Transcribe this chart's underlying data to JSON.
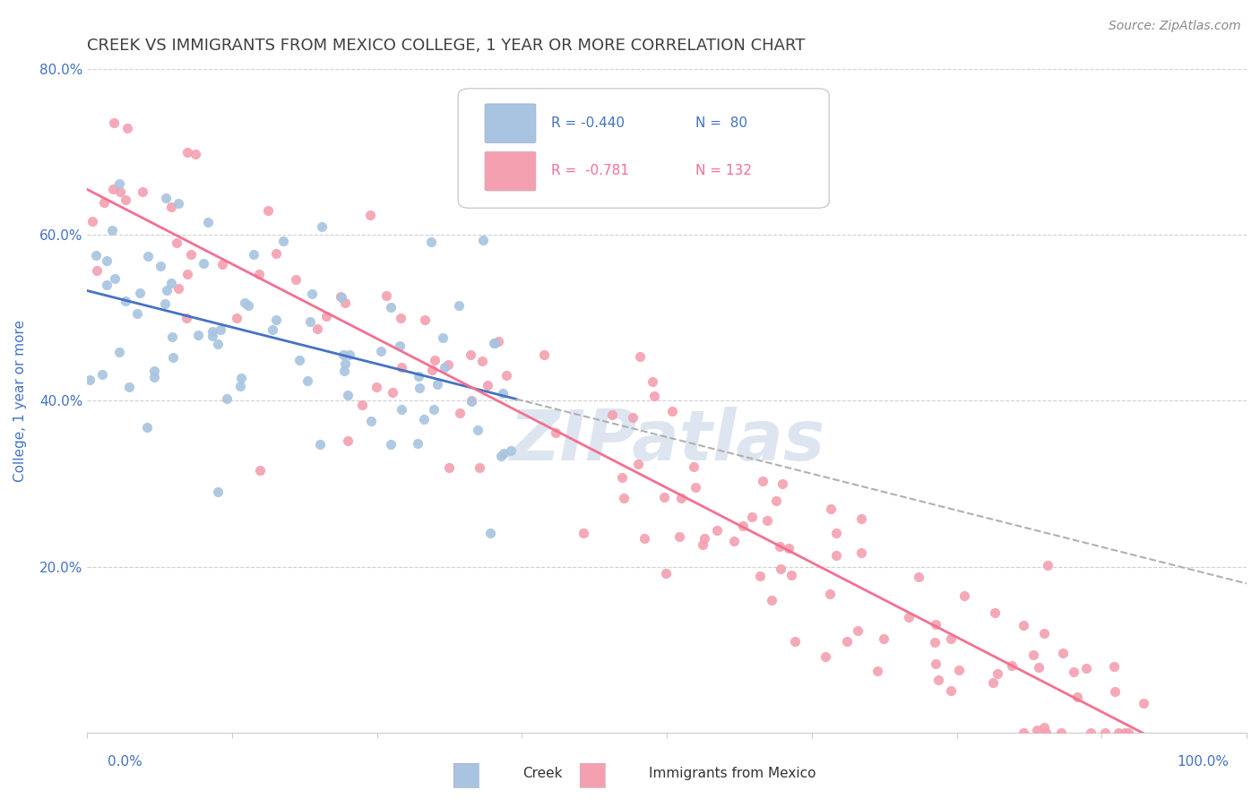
{
  "title": "CREEK VS IMMIGRANTS FROM MEXICO COLLEGE, 1 YEAR OR MORE CORRELATION CHART",
  "source_text": "Source: ZipAtlas.com",
  "ylabel": "College, 1 year or more",
  "watermark": "ZIPatlas",
  "creek_color": "#a8c4e0",
  "mexico_color": "#f4a0b0",
  "creek_line_color": "#4472c4",
  "mexico_line_color": "#f47090",
  "dash_line_color": "#b0b0b0",
  "title_color": "#404040",
  "axis_color": "#4472c4",
  "grid_color": "#d0d0d0",
  "background_color": "#ffffff",
  "creek_R": -0.44,
  "creek_N": 80,
  "mexico_R": -0.781,
  "mexico_N": 132
}
